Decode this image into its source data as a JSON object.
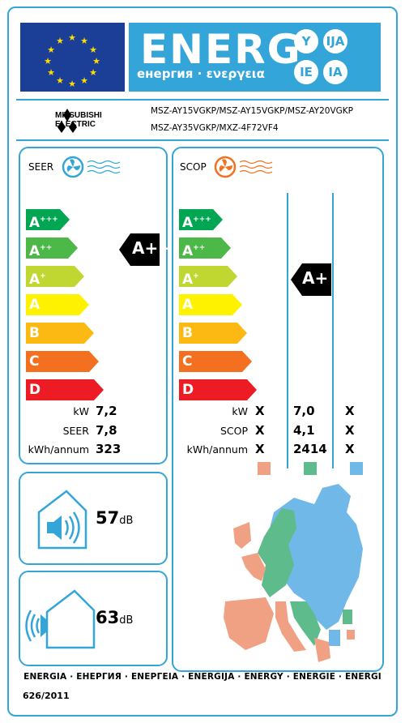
{
  "header": {
    "title": "ENERG",
    "subtitle": "енергия · ενεργεια",
    "lang_badges": [
      "Y",
      "IJA",
      "IE",
      "IA"
    ]
  },
  "brand": {
    "name_line1": "MITSUBISHI",
    "name_line2": "ELECTRIC"
  },
  "models": {
    "line1": "MSZ-AY15VGKP/MSZ-AY15VGKP/MSZ-AY20VGKP",
    "line2": "MSZ-AY35VGKP/MXZ-4F72VF4"
  },
  "scale_labels": [
    "A+++",
    "A++",
    "A+",
    "A",
    "B",
    "C",
    "D"
  ],
  "seer": {
    "title": "SEER",
    "rating": "A++",
    "rows": [
      {
        "label": "kW",
        "value": "7,2"
      },
      {
        "label": "SEER",
        "value": "7,8"
      },
      {
        "label": "kWh/annum",
        "value": "323"
      }
    ]
  },
  "scop": {
    "title": "SCOP",
    "rating": "A+",
    "rows": [
      {
        "label": "kW",
        "warm": "X",
        "avg": "7,0",
        "cold": "X"
      },
      {
        "label": "SCOP",
        "warm": "X",
        "avg": "4,1",
        "cold": "X"
      },
      {
        "label": "kWh/annum",
        "warm": "X",
        "avg": "2414",
        "cold": "X"
      }
    ],
    "zone_colors": [
      "#f0a183",
      "#5dbb8c",
      "#70b8e8"
    ]
  },
  "noise": {
    "indoor": {
      "value": "57",
      "unit": "dB"
    },
    "outdoor": {
      "value": "63",
      "unit": "dB"
    }
  },
  "footer": {
    "languages": "ENERGIA · ЕНЕРГИЯ · ΕΝΕΡΓΕΙΑ · ENERGIJA · ENERGY · ENERGIE · ENERGI",
    "regulation": "626/2011"
  },
  "colors": {
    "frame": "#33a5d8",
    "a3": "#00a651",
    "a2": "#4cb848",
    "a1": "#bfd730",
    "a": "#fff200",
    "b": "#fdb913",
    "c": "#f37021",
    "d": "#ed1c24"
  }
}
